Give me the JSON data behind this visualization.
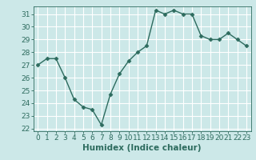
{
  "x": [
    0,
    1,
    2,
    3,
    4,
    5,
    6,
    7,
    8,
    9,
    10,
    11,
    12,
    13,
    14,
    15,
    16,
    17,
    18,
    19,
    20,
    21,
    22,
    23
  ],
  "y": [
    27.0,
    27.5,
    27.5,
    26.0,
    24.3,
    23.7,
    23.5,
    22.3,
    24.7,
    26.3,
    27.3,
    28.0,
    28.5,
    31.3,
    31.0,
    31.3,
    31.0,
    31.0,
    29.3,
    29.0,
    29.0,
    29.5,
    29.0,
    28.5
  ],
  "line_color": "#2d6b5e",
  "marker": "D",
  "marker_size": 2.5,
  "line_width": 1.0,
  "background_color": "#cce8e8",
  "grid_color": "#ffffff",
  "grid_minor_color": "#e0f0f0",
  "tick_color": "#2d6b5e",
  "xlabel": "Humidex (Indice chaleur)",
  "xlabel_fontsize": 7.5,
  "ylabel_ticks": [
    22,
    23,
    24,
    25,
    26,
    27,
    28,
    29,
    30,
    31
  ],
  "ylim": [
    21.8,
    31.6
  ],
  "xlim": [
    -0.5,
    23.5
  ],
  "xticks": [
    0,
    1,
    2,
    3,
    4,
    5,
    6,
    7,
    8,
    9,
    10,
    11,
    12,
    13,
    14,
    15,
    16,
    17,
    18,
    19,
    20,
    21,
    22,
    23
  ],
  "tick_label_fontsize": 6.5
}
